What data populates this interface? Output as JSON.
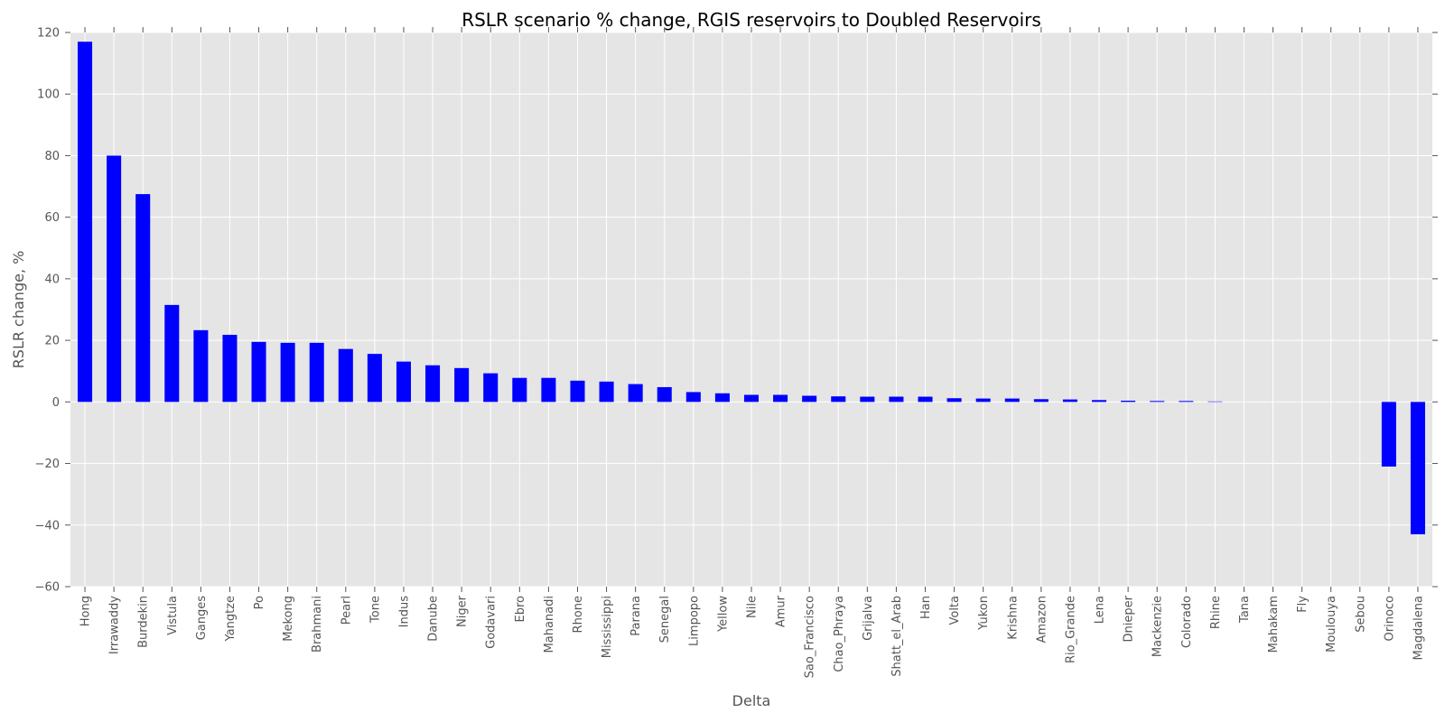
{
  "chart_data": {
    "type": "bar",
    "title": "RSLR scenario % change, RGIS reservoirs to Doubled Reservoirs",
    "xlabel": "Delta",
    "ylabel": "RSLR change, %",
    "ylim": [
      -60,
      120
    ],
    "yticks": [
      -60,
      -40,
      -20,
      0,
      20,
      40,
      60,
      80,
      100,
      120
    ],
    "ytick_labels": [
      "−60",
      "−40",
      "−20",
      "0",
      "20",
      "40",
      "60",
      "80",
      "100",
      "120"
    ],
    "grid": true,
    "categories": [
      "Hong",
      "Irrawaddy",
      "Burdekin",
      "Vistula",
      "Ganges",
      "Yangtze",
      "Po",
      "Mekong",
      "Brahmani",
      "Pearl",
      "Tone",
      "Indus",
      "Danube",
      "Niger",
      "Godavari",
      "Ebro",
      "Mahanadi",
      "Rhone",
      "Mississippi",
      "Parana",
      "Senegal",
      "Limpopo",
      "Yellow",
      "Nile",
      "Amur",
      "Sao_Francisco",
      "Chao_Phraya",
      "Grijalva",
      "Shatt_el_Arab",
      "Han",
      "Volta",
      "Yukon",
      "Krishna",
      "Amazon",
      "Rio_Grande",
      "Lena",
      "Dnieper",
      "Mackenzie",
      "Colorado",
      "Rhine",
      "Tana",
      "Mahakam",
      "Fly",
      "Moulouya",
      "Sebou",
      "Orinoco",
      "Magdalena"
    ],
    "values": [
      117,
      80,
      67.5,
      31.5,
      23.3,
      21.8,
      19.5,
      19.2,
      19.2,
      17.2,
      15.6,
      13.1,
      11.9,
      11.0,
      9.3,
      7.8,
      7.8,
      6.9,
      6.6,
      5.8,
      4.8,
      3.2,
      2.8,
      2.3,
      2.3,
      2.0,
      1.8,
      1.7,
      1.7,
      1.7,
      1.2,
      1.1,
      1.1,
      0.9,
      0.8,
      0.6,
      0.4,
      0.3,
      0.3,
      0.15,
      0,
      0,
      0,
      0,
      0,
      -21,
      -43
    ],
    "colors": {
      "bar": "#0000ff",
      "plot_bg": "#e5e5e5",
      "grid": "#ffffff",
      "text": "#555555"
    }
  }
}
